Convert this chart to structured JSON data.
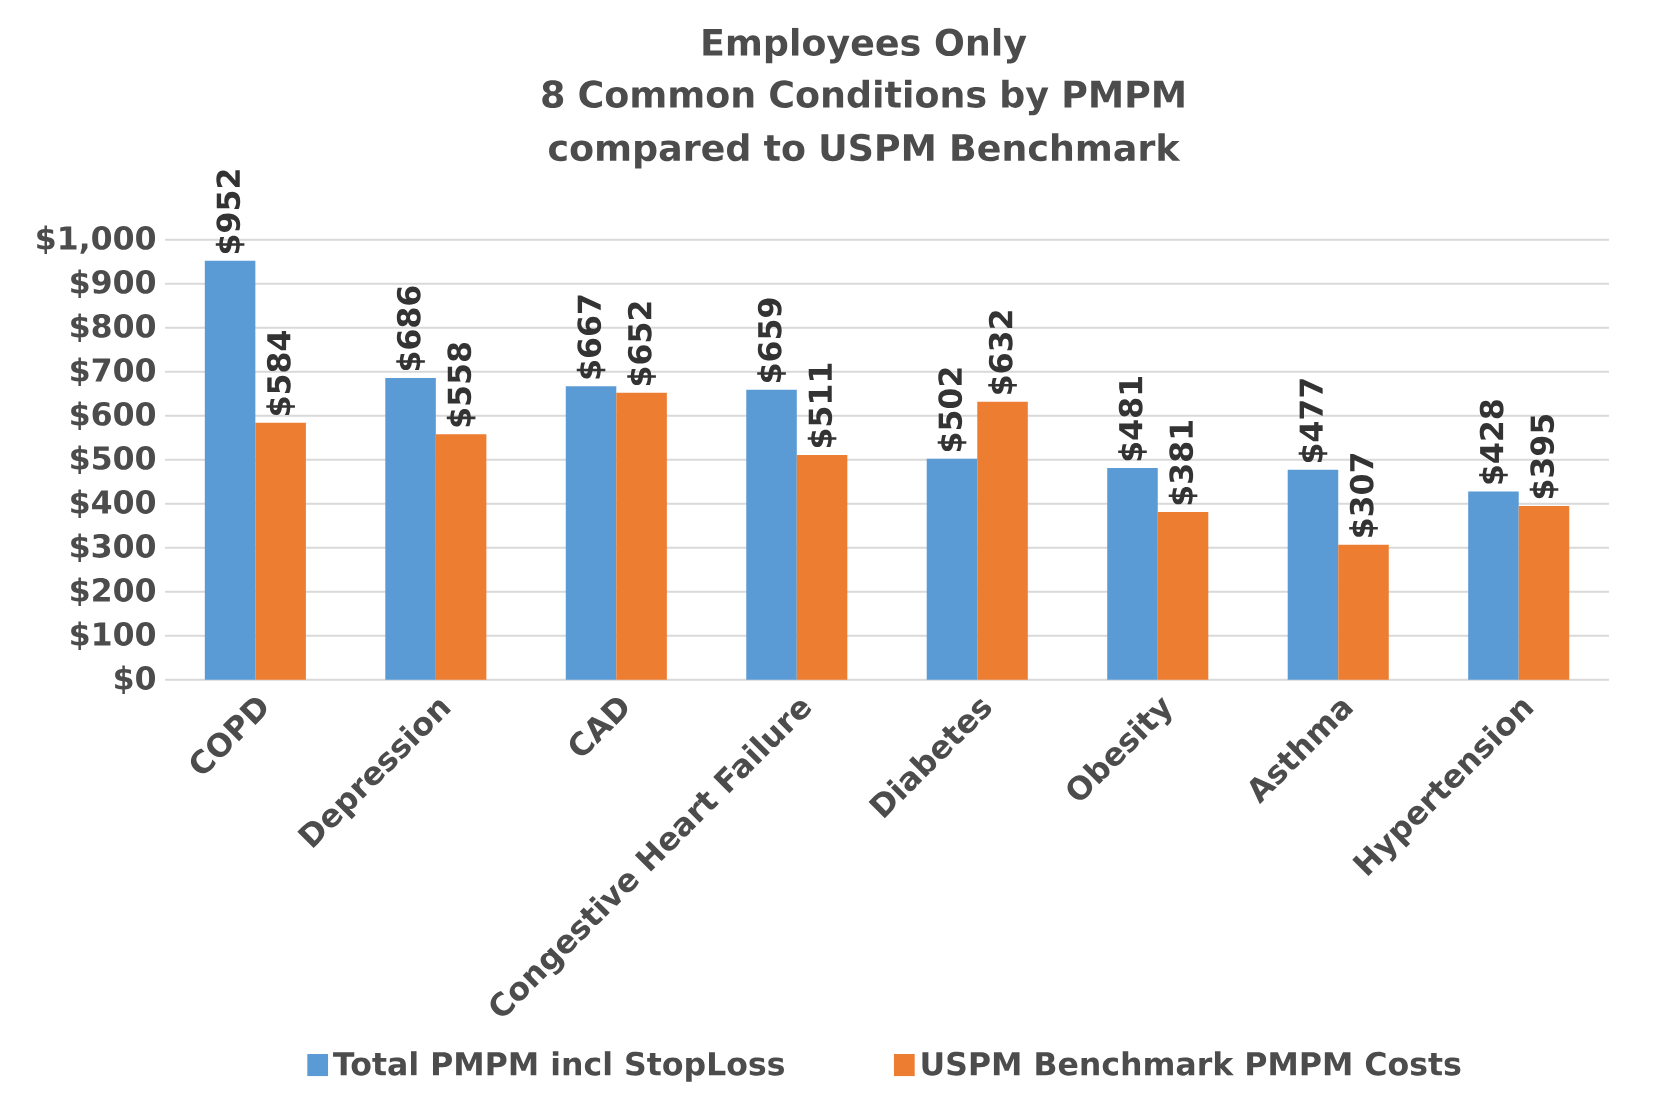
{
  "chart_data": {
    "type": "bar",
    "title": "Employees Only",
    "subtitle": "8 Common Conditions by PMPM compared to USPM Benchmark",
    "categories": [
      "COPD",
      "Depression",
      "CAD",
      "Congestive Heart Failure",
      "Diabetes",
      "Obesity",
      "Asthma",
      "Hypertension"
    ],
    "series": [
      {
        "name": "Total PMPM incl StopLoss",
        "color": "#5b9bd5",
        "values": [
          952,
          686,
          667,
          659,
          502,
          481,
          477,
          428
        ],
        "value_labels": [
          "$952",
          "$686",
          "$667",
          "$659",
          "$502",
          "$481",
          "$477",
          "$428"
        ]
      },
      {
        "name": "USPM Benchmark PMPM Costs",
        "color": "#ed7d31",
        "values": [
          584,
          558,
          652,
          511,
          632,
          381,
          307,
          395
        ],
        "value_labels": [
          "$584",
          "$558",
          "$652",
          "$511",
          "$632",
          "$381",
          "$307",
          "$395"
        ]
      }
    ],
    "ylim": [
      0,
      1000
    ],
    "yticks": [
      {
        "value": 0,
        "label": "$0"
      },
      {
        "value": 100,
        "label": "$100"
      },
      {
        "value": 200,
        "label": "$200"
      },
      {
        "value": 300,
        "label": "$300"
      },
      {
        "value": 400,
        "label": "$400"
      },
      {
        "value": 500,
        "label": "$500"
      },
      {
        "value": 600,
        "label": "$600"
      },
      {
        "value": 700,
        "label": "$700"
      },
      {
        "value": 800,
        "label": "$800"
      },
      {
        "value": 900,
        "label": "$900"
      },
      {
        "value": 1000,
        "label": "$1,000"
      }
    ],
    "grid": "y",
    "legend": "bottom"
  }
}
